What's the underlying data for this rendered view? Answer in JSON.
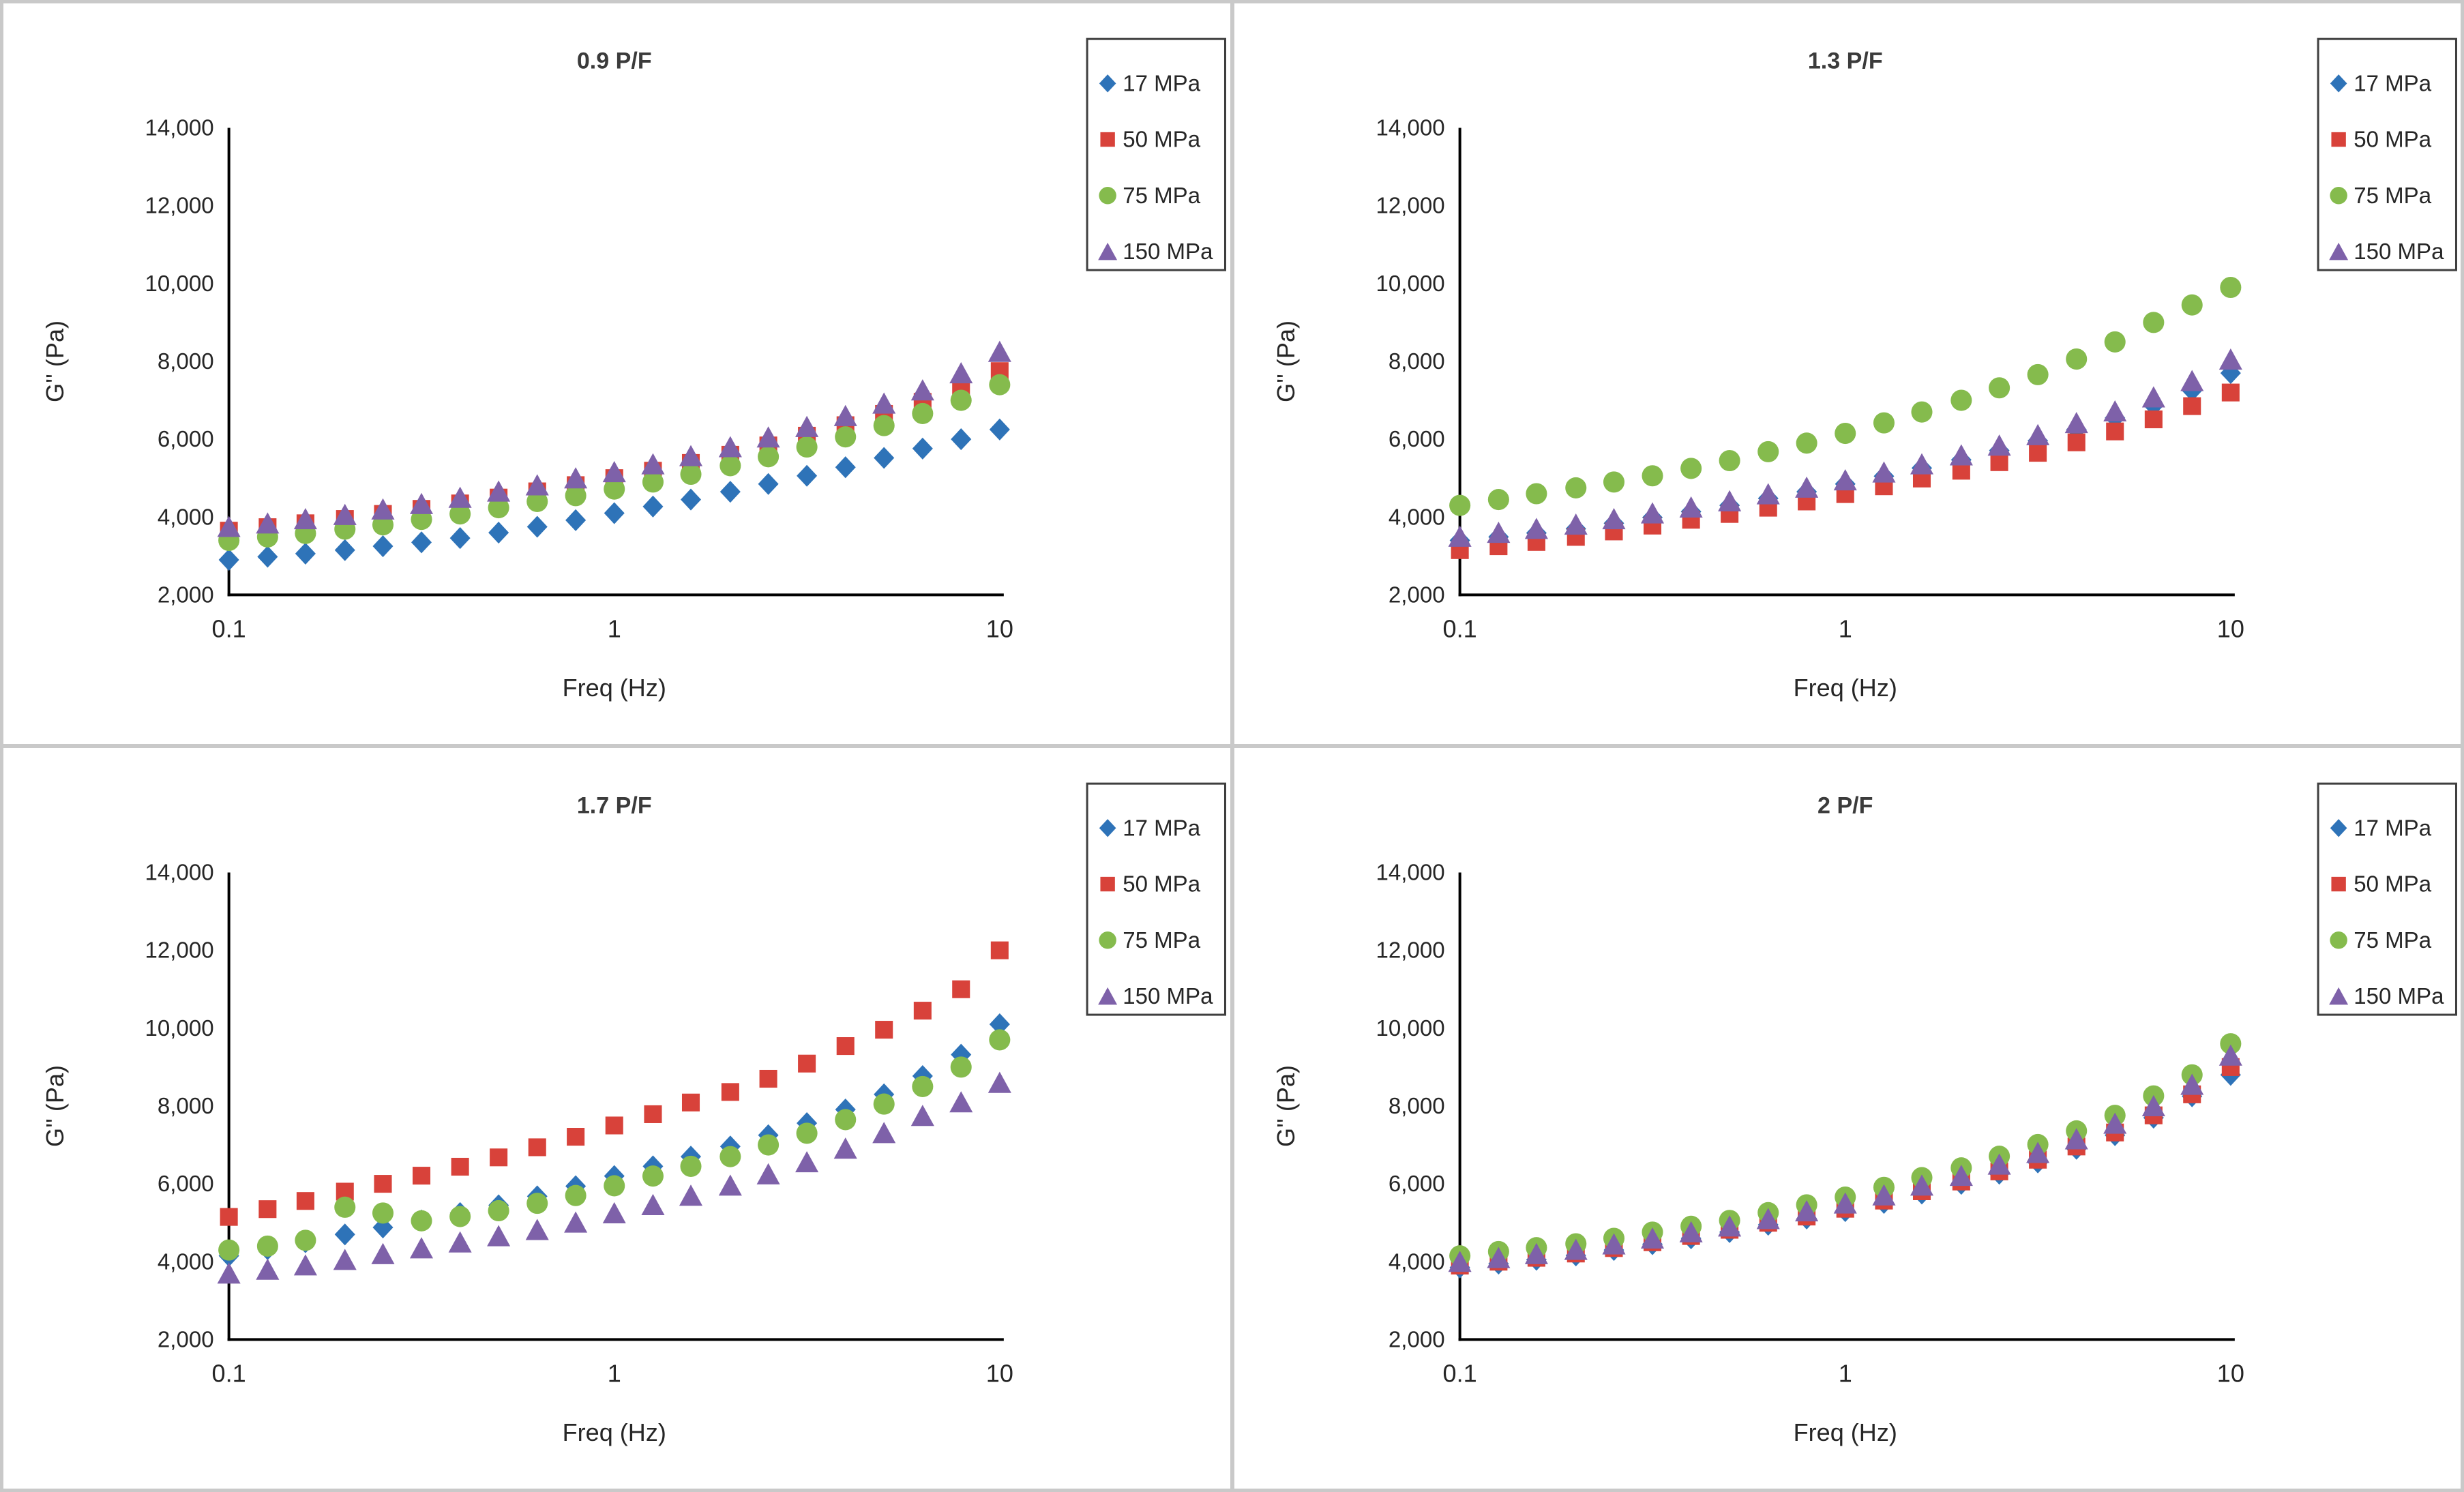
{
  "page": {
    "background": "#ffffff",
    "frame_color": "#c9c9c9",
    "text_color": "#262626",
    "title_color": "#3b3b3b",
    "axis_color": "#000000",
    "legend_border_color": "#3f3f3f"
  },
  "chart_data": [
    {
      "type": "scatter",
      "title": "0.9 P/F",
      "xlabel": "Freq (Hz)",
      "ylabel": "G'' (Pa)",
      "x_scale": "log",
      "xlim": [
        0.1,
        10
      ],
      "ylim": [
        2000,
        14000
      ],
      "grid": false,
      "legend_position": "top-right",
      "xticks": [
        0.1,
        1,
        10
      ],
      "xtick_labels": [
        "0.1",
        "1",
        "10"
      ],
      "yticks": [
        2000,
        4000,
        6000,
        8000,
        10000,
        12000,
        14000
      ],
      "ytick_labels": [
        "2,000",
        "4,000",
        "6,000",
        "8,000",
        "10,000",
        "12,000",
        "14,000"
      ],
      "x": [
        0.1,
        0.126,
        0.158,
        0.2,
        0.251,
        0.316,
        0.398,
        0.501,
        0.631,
        0.794,
        1,
        1.26,
        1.58,
        2,
        2.51,
        3.16,
        3.98,
        5.01,
        6.31,
        7.94,
        10
      ],
      "series": [
        {
          "name": "17 MPa",
          "marker": "diamond",
          "color": "#2E73B8",
          "values": [
            2900,
            2980,
            3060,
            3150,
            3250,
            3350,
            3460,
            3600,
            3750,
            3920,
            4100,
            4270,
            4450,
            4650,
            4850,
            5060,
            5280,
            5520,
            5760,
            6000,
            6250
          ]
        },
        {
          "name": "50 MPa",
          "marker": "square",
          "color": "#D8423A",
          "values": [
            3650,
            3740,
            3840,
            3950,
            4080,
            4210,
            4350,
            4500,
            4660,
            4820,
            5000,
            5190,
            5390,
            5600,
            5840,
            6090,
            6360,
            6650,
            6960,
            7300,
            7750
          ]
        },
        {
          "name": "75 MPa",
          "marker": "circle",
          "color": "#85BB4D",
          "values": [
            3400,
            3490,
            3580,
            3690,
            3800,
            3940,
            4080,
            4240,
            4400,
            4550,
            4720,
            4900,
            5100,
            5320,
            5550,
            5800,
            6060,
            6350,
            6660,
            7000,
            7400
          ]
        },
        {
          "name": "150 MPa",
          "marker": "triangle",
          "color": "#7E61A9",
          "values": [
            3750,
            3840,
            3950,
            4060,
            4200,
            4340,
            4500,
            4660,
            4820,
            5000,
            5160,
            5360,
            5570,
            5800,
            6050,
            6320,
            6600,
            6920,
            7260,
            7700,
            8250
          ]
        }
      ]
    },
    {
      "type": "scatter",
      "title": "1.3 P/F",
      "xlabel": "Freq (Hz)",
      "ylabel": "G'' (Pa)",
      "x_scale": "log",
      "xlim": [
        0.1,
        10
      ],
      "ylim": [
        2000,
        14000
      ],
      "grid": false,
      "legend_position": "top-right",
      "xticks": [
        0.1,
        1,
        10
      ],
      "xtick_labels": [
        "0.1",
        "1",
        "10"
      ],
      "yticks": [
        2000,
        4000,
        6000,
        8000,
        10000,
        12000,
        14000
      ],
      "ytick_labels": [
        "2,000",
        "4,000",
        "6,000",
        "8,000",
        "10,000",
        "12,000",
        "14,000"
      ],
      "x": [
        0.1,
        0.126,
        0.158,
        0.2,
        0.251,
        0.316,
        0.398,
        0.501,
        0.631,
        0.794,
        1,
        1.26,
        1.58,
        2,
        2.51,
        3.16,
        3.98,
        5.01,
        6.31,
        7.94,
        10
      ],
      "series": [
        {
          "name": "17 MPa",
          "marker": "diamond",
          "color": "#2E73B8",
          "values": [
            3400,
            3490,
            3590,
            3700,
            3840,
            3990,
            4140,
            4300,
            4480,
            4650,
            4850,
            5050,
            5260,
            5470,
            5710,
            5960,
            6250,
            6550,
            6870,
            7250,
            7700
          ]
        },
        {
          "name": "50 MPa",
          "marker": "square",
          "color": "#D8423A",
          "values": [
            3150,
            3250,
            3360,
            3490,
            3630,
            3780,
            3930,
            4080,
            4240,
            4400,
            4590,
            4790,
            4990,
            5190,
            5410,
            5650,
            5920,
            6200,
            6510,
            6850,
            7200
          ]
        },
        {
          "name": "75 MPa",
          "marker": "circle",
          "color": "#85BB4D",
          "values": [
            4300,
            4450,
            4600,
            4750,
            4900,
            5060,
            5250,
            5450,
            5680,
            5900,
            6150,
            6420,
            6700,
            7000,
            7320,
            7660,
            8060,
            8500,
            9000,
            9450,
            9900
          ]
        },
        {
          "name": "150 MPa",
          "marker": "triangle",
          "color": "#7E61A9",
          "values": [
            3500,
            3600,
            3700,
            3810,
            3950,
            4100,
            4250,
            4410,
            4590,
            4760,
            4950,
            5150,
            5360,
            5590,
            5840,
            6110,
            6420,
            6720,
            7080,
            7500,
            8050
          ]
        }
      ]
    },
    {
      "type": "scatter",
      "title": "1.7 P/F",
      "xlabel": "Freq (Hz)",
      "ylabel": "G'' (Pa)",
      "x_scale": "log",
      "xlim": [
        0.1,
        10
      ],
      "ylim": [
        2000,
        14000
      ],
      "grid": false,
      "legend_position": "top-right",
      "xticks": [
        0.1,
        1,
        10
      ],
      "xtick_labels": [
        "0.1",
        "1",
        "10"
      ],
      "yticks": [
        2000,
        4000,
        6000,
        8000,
        10000,
        12000,
        14000
      ],
      "ytick_labels": [
        "2,000",
        "4,000",
        "6,000",
        "8,000",
        "10,000",
        "12,000",
        "14,000"
      ],
      "x": [
        0.1,
        0.126,
        0.158,
        0.2,
        0.251,
        0.316,
        0.398,
        0.501,
        0.631,
        0.794,
        1,
        1.26,
        1.58,
        2,
        2.51,
        3.16,
        3.98,
        5.01,
        6.31,
        7.94,
        10
      ],
      "series": [
        {
          "name": "17 MPa",
          "marker": "diamond",
          "color": "#2E73B8",
          "values": [
            4150,
            4320,
            4500,
            4700,
            4880,
            5060,
            5250,
            5450,
            5680,
            5940,
            6200,
            6450,
            6700,
            6960,
            7250,
            7560,
            7910,
            8300,
            8770,
            9320,
            10100
          ]
        },
        {
          "name": "50 MPa",
          "marker": "square",
          "color": "#D8423A",
          "values": [
            5150,
            5350,
            5560,
            5800,
            6000,
            6210,
            6440,
            6680,
            6940,
            7210,
            7500,
            7790,
            8090,
            8360,
            8700,
            9090,
            9540,
            9960,
            10450,
            11000,
            12000
          ]
        },
        {
          "name": "75 MPa",
          "marker": "circle",
          "color": "#85BB4D",
          "values": [
            4300,
            4400,
            4550,
            5400,
            5250,
            5050,
            5160,
            5310,
            5500,
            5700,
            5950,
            6200,
            6450,
            6700,
            7000,
            7300,
            7650,
            8050,
            8500,
            9000,
            9700
          ]
        },
        {
          "name": "150 MPa",
          "marker": "triangle",
          "color": "#7E61A9",
          "values": [
            3700,
            3800,
            3910,
            4050,
            4200,
            4350,
            4500,
            4660,
            4820,
            5010,
            5250,
            5460,
            5700,
            5960,
            6250,
            6560,
            6910,
            7310,
            7750,
            8100,
            8600
          ]
        }
      ]
    },
    {
      "type": "scatter",
      "title": "2 P/F",
      "xlabel": "Freq (Hz)",
      "ylabel": "G'' (Pa)",
      "x_scale": "log",
      "xlim": [
        0.1,
        10
      ],
      "ylim": [
        2000,
        14000
      ],
      "grid": false,
      "legend_position": "top-right",
      "xticks": [
        0.1,
        1,
        10
      ],
      "xtick_labels": [
        "0.1",
        "1",
        "10"
      ],
      "yticks": [
        2000,
        4000,
        6000,
        8000,
        10000,
        12000,
        14000
      ],
      "ytick_labels": [
        "2,000",
        "4,000",
        "6,000",
        "8,000",
        "10,000",
        "12,000",
        "14,000"
      ],
      "x": [
        0.1,
        0.126,
        0.158,
        0.2,
        0.251,
        0.316,
        0.398,
        0.501,
        0.631,
        0.794,
        1,
        1.26,
        1.58,
        2,
        2.51,
        3.16,
        3.98,
        5.01,
        6.31,
        7.94,
        10
      ],
      "series": [
        {
          "name": "17 MPa",
          "marker": "diamond",
          "color": "#2E73B8",
          "values": [
            3850,
            3950,
            4050,
            4160,
            4300,
            4450,
            4600,
            4760,
            4950,
            5110,
            5300,
            5510,
            5750,
            6000,
            6260,
            6550,
            6900,
            7250,
            7700,
            8250,
            8800
          ]
        },
        {
          "name": "50 MPa",
          "marker": "square",
          "color": "#D8423A",
          "values": [
            3900,
            4000,
            4100,
            4210,
            4350,
            4500,
            4660,
            4820,
            5000,
            5160,
            5360,
            5570,
            5810,
            6060,
            6320,
            6620,
            6960,
            7320,
            7760,
            8300,
            9000
          ]
        },
        {
          "name": "75 MPa",
          "marker": "circle",
          "color": "#85BB4D",
          "values": [
            4150,
            4260,
            4360,
            4460,
            4600,
            4760,
            4910,
            5060,
            5260,
            5460,
            5660,
            5910,
            6160,
            6410,
            6710,
            7010,
            7360,
            7760,
            8260,
            8800,
            9600
          ]
        },
        {
          "name": "150 MPa",
          "marker": "triangle",
          "color": "#7E61A9",
          "values": [
            4000,
            4100,
            4200,
            4310,
            4450,
            4600,
            4760,
            4910,
            5100,
            5300,
            5500,
            5710,
            5960,
            6210,
            6500,
            6800,
            7150,
            7550,
            8000,
            8550,
            9300
          ]
        }
      ]
    }
  ]
}
